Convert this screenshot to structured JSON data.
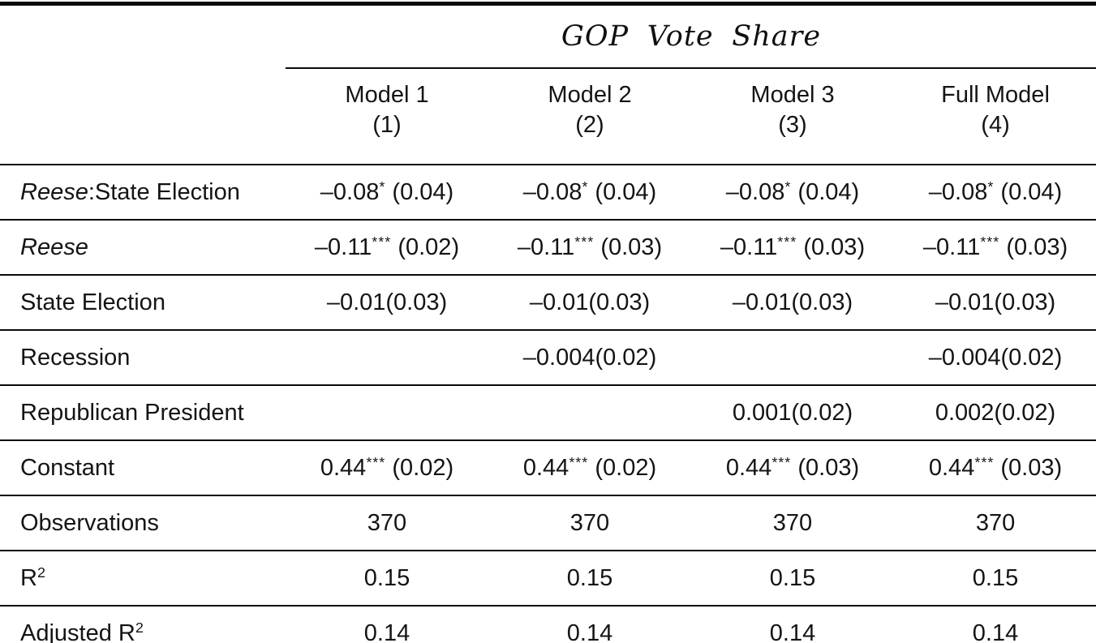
{
  "table": {
    "title": "GOP Vote Share",
    "columns": [
      {
        "name": "Model 1",
        "number": "(1)"
      },
      {
        "name": "Model 2",
        "number": "(2)"
      },
      {
        "name": "Model 3",
        "number": "(3)"
      },
      {
        "name": "Full Model",
        "number": "(4)"
      }
    ],
    "rows": [
      {
        "label": {
          "em": "Reese",
          "text": ":State Election",
          "sup": ""
        },
        "values": [
          {
            "pre": "–0.08",
            "sup": "*",
            "post": " (0.04)"
          },
          {
            "pre": "–0.08",
            "sup": "*",
            "post": " (0.04)"
          },
          {
            "pre": "–0.08",
            "sup": "*",
            "post": " (0.04)"
          },
          {
            "pre": "–0.08",
            "sup": "*",
            "post": " (0.04)"
          }
        ]
      },
      {
        "label": {
          "em": "Reese",
          "text": "",
          "sup": ""
        },
        "values": [
          {
            "pre": "–0.11",
            "sup": "***",
            "post": " (0.02)"
          },
          {
            "pre": "–0.11",
            "sup": "***",
            "post": " (0.03)"
          },
          {
            "pre": "–0.11",
            "sup": "***",
            "post": " (0.03)"
          },
          {
            "pre": "–0.11",
            "sup": "***",
            "post": " (0.03)"
          }
        ]
      },
      {
        "label": {
          "em": "",
          "text": "State Election",
          "sup": ""
        },
        "values": [
          {
            "pre": "–0.01(0.03)",
            "sup": "",
            "post": ""
          },
          {
            "pre": "–0.01(0.03)",
            "sup": "",
            "post": ""
          },
          {
            "pre": "–0.01(0.03)",
            "sup": "",
            "post": ""
          },
          {
            "pre": "–0.01(0.03)",
            "sup": "",
            "post": ""
          }
        ]
      },
      {
        "label": {
          "em": "",
          "text": "Recession",
          "sup": ""
        },
        "values": [
          {
            "pre": "",
            "sup": "",
            "post": ""
          },
          {
            "pre": "–0.004(0.02)",
            "sup": "",
            "post": ""
          },
          {
            "pre": "",
            "sup": "",
            "post": ""
          },
          {
            "pre": "–0.004(0.02)",
            "sup": "",
            "post": ""
          }
        ]
      },
      {
        "label": {
          "em": "",
          "text": "Republican President",
          "sup": ""
        },
        "values": [
          {
            "pre": "",
            "sup": "",
            "post": ""
          },
          {
            "pre": "",
            "sup": "",
            "post": ""
          },
          {
            "pre": "0.001(0.02)",
            "sup": "",
            "post": ""
          },
          {
            "pre": "0.002(0.02)",
            "sup": "",
            "post": ""
          }
        ]
      },
      {
        "label": {
          "em": "",
          "text": "Constant",
          "sup": ""
        },
        "values": [
          {
            "pre": "0.44",
            "sup": "***",
            "post": " (0.02)"
          },
          {
            "pre": "0.44",
            "sup": "***",
            "post": " (0.02)"
          },
          {
            "pre": "0.44",
            "sup": "***",
            "post": " (0.03)"
          },
          {
            "pre": "0.44",
            "sup": "***",
            "post": " (0.03)"
          }
        ]
      },
      {
        "label": {
          "em": "",
          "text": "Observations",
          "sup": ""
        },
        "values": [
          {
            "pre": "370",
            "sup": "",
            "post": ""
          },
          {
            "pre": "370",
            "sup": "",
            "post": ""
          },
          {
            "pre": "370",
            "sup": "",
            "post": ""
          },
          {
            "pre": "370",
            "sup": "",
            "post": ""
          }
        ]
      },
      {
        "label": {
          "em": "",
          "text": "R",
          "sup": "2"
        },
        "values": [
          {
            "pre": "0.15",
            "sup": "",
            "post": ""
          },
          {
            "pre": "0.15",
            "sup": "",
            "post": ""
          },
          {
            "pre": "0.15",
            "sup": "",
            "post": ""
          },
          {
            "pre": "0.15",
            "sup": "",
            "post": ""
          }
        ]
      },
      {
        "label": {
          "em": "",
          "text": "Adjusted R",
          "sup": "2"
        },
        "values": [
          {
            "pre": "0.14",
            "sup": "",
            "post": ""
          },
          {
            "pre": "0.14",
            "sup": "",
            "post": ""
          },
          {
            "pre": "0.14",
            "sup": "",
            "post": ""
          },
          {
            "pre": "0.14",
            "sup": "",
            "post": ""
          }
        ]
      }
    ]
  }
}
